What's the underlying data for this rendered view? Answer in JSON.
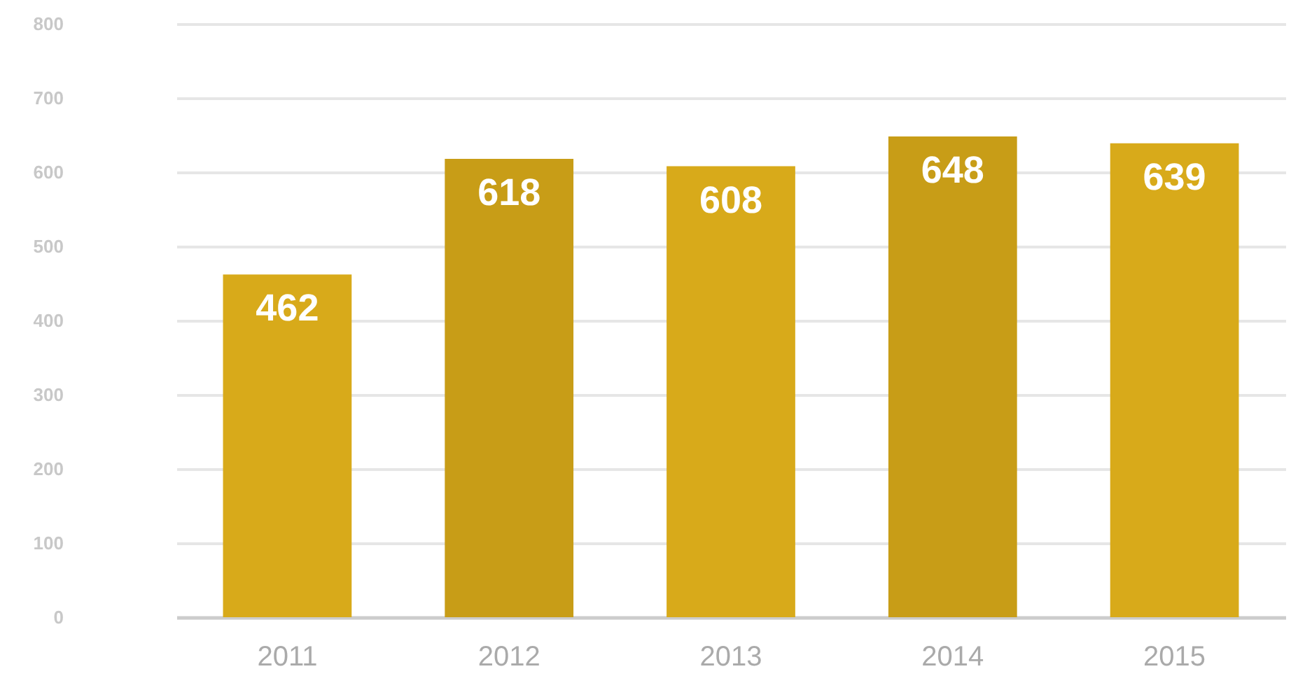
{
  "chart_data": {
    "type": "bar",
    "categories": [
      "2011",
      "2012",
      "2013",
      "2014",
      "2015"
    ],
    "values": [
      462,
      618,
      608,
      648,
      639
    ],
    "colors": [
      "#d8aa1a",
      "#c89d17",
      "#d8aa1a",
      "#c89d17",
      "#d8aa1a"
    ],
    "ylim": [
      0,
      800
    ],
    "yticks": [
      0,
      100,
      200,
      300,
      400,
      500,
      600,
      700,
      800
    ],
    "grid": "y",
    "data_labels": true
  }
}
